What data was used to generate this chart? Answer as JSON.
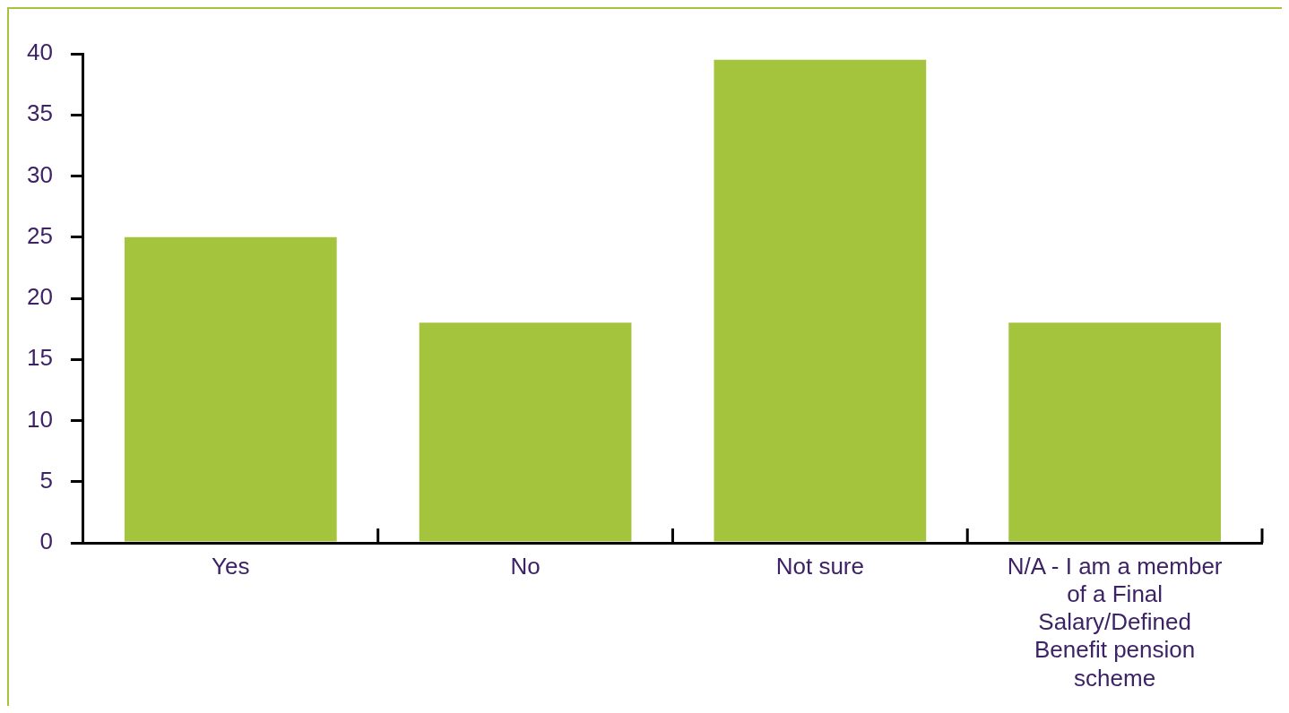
{
  "chart_data": {
    "type": "bar",
    "categories": [
      "Yes",
      "No",
      "Not sure",
      "N/A - I am a member of a Final Salary/Defined Benefit pension scheme"
    ],
    "values": [
      25,
      18,
      39.5,
      18
    ],
    "color": "#a3c43c",
    "ylim": [
      0,
      40
    ],
    "yticks": [
      0,
      5,
      10,
      15,
      20,
      25,
      30,
      35,
      40
    ],
    "grid": false,
    "legend": false
  }
}
